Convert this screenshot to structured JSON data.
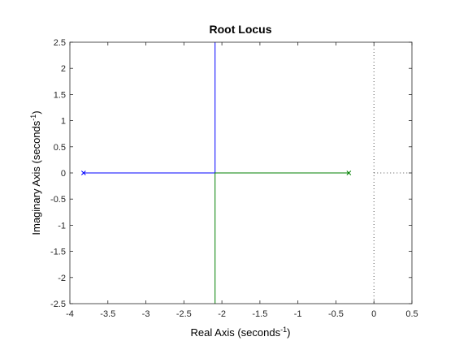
{
  "chart_data": {
    "type": "line",
    "title": "Root Locus",
    "xlabel": {
      "text": "Real Axis (seconds",
      "sup": "-1",
      "close": ")"
    },
    "ylabel": {
      "text": "Imaginary Axis (seconds",
      "sup": "-1",
      "close": ")"
    },
    "xlim": [
      -4,
      0.5
    ],
    "ylim": [
      -2.5,
      2.5
    ],
    "xticks": [
      -4,
      -3.5,
      -3,
      -2.5,
      -2,
      -1.5,
      -1,
      -0.5,
      0,
      0.5
    ],
    "xtick_labels": [
      "-4",
      "-3.5",
      "-3",
      "-2.5",
      "-2",
      "-1.5",
      "-1",
      "-0.5",
      "0",
      "0.5"
    ],
    "yticks": [
      -2.5,
      -2,
      -1.5,
      -1,
      -0.5,
      0,
      0.5,
      1,
      1.5,
      2,
      2.5
    ],
    "ytick_labels": [
      "-2.5",
      "-2",
      "-1.5",
      "-1",
      "-0.5",
      "0",
      "0.5",
      "1",
      "1.5",
      "2",
      "2.5"
    ],
    "grid": false,
    "series": [
      {
        "color": "#0000ff",
        "x": [
          -3.82,
          -2.09,
          -2.09
        ],
        "y": [
          0,
          0,
          2.5
        ]
      },
      {
        "color": "#008000",
        "x": [
          -0.33,
          -2.09,
          -2.09
        ],
        "y": [
          0,
          0,
          -2.5
        ]
      }
    ],
    "poles": [
      {
        "x": -3.82,
        "y": 0,
        "color": "#0000ff"
      },
      {
        "x": -0.33,
        "y": 0,
        "color": "#008000"
      }
    ],
    "reference_lines": [
      {
        "orientation": "vertical",
        "at": 0,
        "style": "dotted"
      },
      {
        "orientation": "horizontal",
        "at": 0,
        "from": 0,
        "to": 0.5,
        "style": "dotted"
      }
    ]
  }
}
